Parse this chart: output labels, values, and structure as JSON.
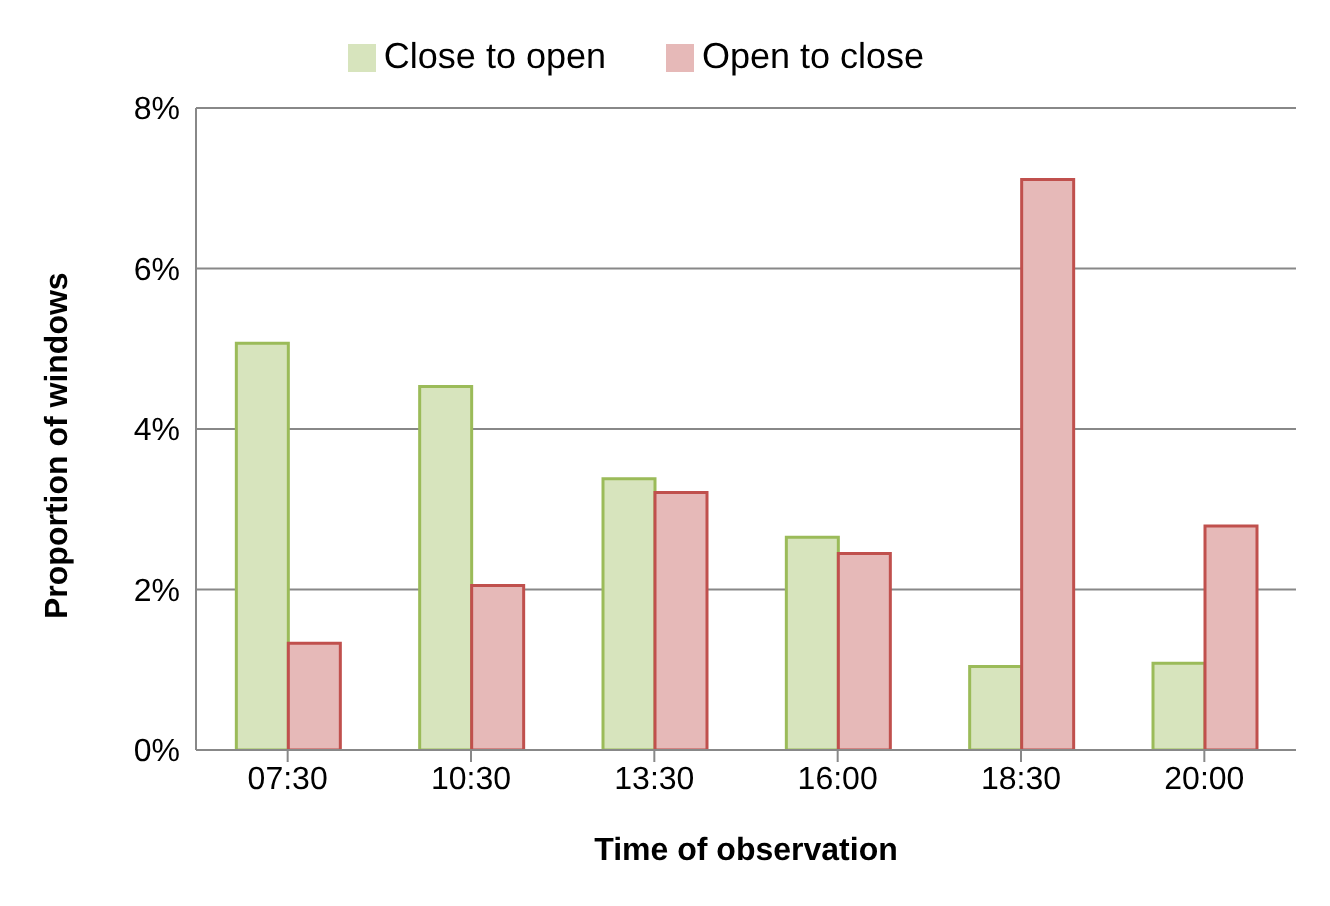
{
  "chart_data": {
    "type": "bar",
    "xlabel": "Time of observation",
    "ylabel": "Proportion of windows",
    "categories": [
      "07:30",
      "10:30",
      "13:30",
      "16:00",
      "18:30",
      "20:00"
    ],
    "series": [
      {
        "name": "Close to open",
        "color": "#9bbb59",
        "values": [
          5.07,
          4.53,
          3.38,
          2.65,
          1.04,
          1.08
        ]
      },
      {
        "name": "Open to close",
        "color": "#c0504d",
        "values": [
          1.33,
          2.05,
          3.21,
          2.45,
          7.11,
          2.79
        ]
      }
    ],
    "ylim": [
      0,
      8
    ],
    "yticks": [
      {
        "value": 0,
        "label": "0%"
      },
      {
        "value": 2,
        "label": "2%"
      },
      {
        "value": 4,
        "label": "4%"
      },
      {
        "value": 6,
        "label": "6%"
      },
      {
        "value": 8,
        "label": "8%"
      }
    ],
    "grid": "y",
    "legend": "top"
  }
}
